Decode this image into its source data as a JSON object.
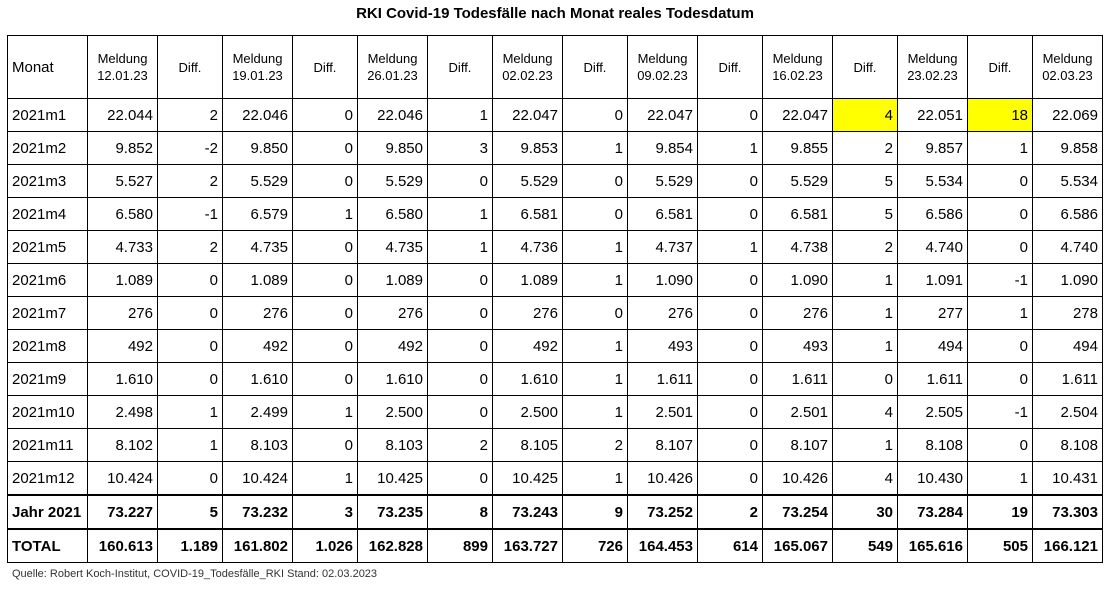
{
  "title": "RKI Covid-19 Todesfälle nach Monat reales Todesdatum",
  "header": {
    "first": "Monat",
    "columns": [
      {
        "line1": "Meldung",
        "line2": "12.01.23"
      },
      {
        "line1": "Diff.",
        "line2": ""
      },
      {
        "line1": "Meldung",
        "line2": "19.01.23"
      },
      {
        "line1": "Diff.",
        "line2": ""
      },
      {
        "line1": "Meldung",
        "line2": "26.01.23"
      },
      {
        "line1": "Diff.",
        "line2": ""
      },
      {
        "line1": "Meldung",
        "line2": "02.02.23"
      },
      {
        "line1": "Diff.",
        "line2": ""
      },
      {
        "line1": "Meldung",
        "line2": "09.02.23"
      },
      {
        "line1": "Diff.",
        "line2": ""
      },
      {
        "line1": "Meldung",
        "line2": "16.02.23"
      },
      {
        "line1": "Diff.",
        "line2": ""
      },
      {
        "line1": "Meldung",
        "line2": "23.02.23"
      },
      {
        "line1": "Diff.",
        "line2": ""
      },
      {
        "line1": "Meldung",
        "line2": "02.03.23"
      }
    ]
  },
  "highlight_color": "#ffff00",
  "rows": [
    {
      "label": "2021m1",
      "cells": [
        "22.044",
        "2",
        "22.046",
        "0",
        "22.046",
        "1",
        "22.047",
        "0",
        "22.047",
        "0",
        "22.047",
        "4",
        "22.051",
        "18",
        "22.069"
      ],
      "highlight": [
        11,
        13
      ]
    },
    {
      "label": "2021m2",
      "cells": [
        "9.852",
        "-2",
        "9.850",
        "0",
        "9.850",
        "3",
        "9.853",
        "1",
        "9.854",
        "1",
        "9.855",
        "2",
        "9.857",
        "1",
        "9.858"
      ],
      "highlight": []
    },
    {
      "label": "2021m3",
      "cells": [
        "5.527",
        "2",
        "5.529",
        "0",
        "5.529",
        "0",
        "5.529",
        "0",
        "5.529",
        "0",
        "5.529",
        "5",
        "5.534",
        "0",
        "5.534"
      ],
      "highlight": []
    },
    {
      "label": "2021m4",
      "cells": [
        "6.580",
        "-1",
        "6.579",
        "1",
        "6.580",
        "1",
        "6.581",
        "0",
        "6.581",
        "0",
        "6.581",
        "5",
        "6.586",
        "0",
        "6.586"
      ],
      "highlight": []
    },
    {
      "label": "2021m5",
      "cells": [
        "4.733",
        "2",
        "4.735",
        "0",
        "4.735",
        "1",
        "4.736",
        "1",
        "4.737",
        "1",
        "4.738",
        "2",
        "4.740",
        "0",
        "4.740"
      ],
      "highlight": []
    },
    {
      "label": "2021m6",
      "cells": [
        "1.089",
        "0",
        "1.089",
        "0",
        "1.089",
        "0",
        "1.089",
        "1",
        "1.090",
        "0",
        "1.090",
        "1",
        "1.091",
        "-1",
        "1.090"
      ],
      "highlight": []
    },
    {
      "label": "2021m7",
      "cells": [
        "276",
        "0",
        "276",
        "0",
        "276",
        "0",
        "276",
        "0",
        "276",
        "0",
        "276",
        "1",
        "277",
        "1",
        "278"
      ],
      "highlight": []
    },
    {
      "label": "2021m8",
      "cells": [
        "492",
        "0",
        "492",
        "0",
        "492",
        "0",
        "492",
        "1",
        "493",
        "0",
        "493",
        "1",
        "494",
        "0",
        "494"
      ],
      "highlight": []
    },
    {
      "label": "2021m9",
      "cells": [
        "1.610",
        "0",
        "1.610",
        "0",
        "1.610",
        "0",
        "1.610",
        "1",
        "1.611",
        "0",
        "1.611",
        "0",
        "1.611",
        "0",
        "1.611"
      ],
      "highlight": []
    },
    {
      "label": "2021m10",
      "cells": [
        "2.498",
        "1",
        "2.499",
        "1",
        "2.500",
        "0",
        "2.500",
        "1",
        "2.501",
        "0",
        "2.501",
        "4",
        "2.505",
        "-1",
        "2.504"
      ],
      "highlight": []
    },
    {
      "label": "2021m11",
      "cells": [
        "8.102",
        "1",
        "8.103",
        "0",
        "8.103",
        "2",
        "8.105",
        "2",
        "8.107",
        "0",
        "8.107",
        "1",
        "8.108",
        "0",
        "8.108"
      ],
      "highlight": []
    },
    {
      "label": "2021m12",
      "cells": [
        "10.424",
        "0",
        "10.424",
        "1",
        "10.425",
        "0",
        "10.425",
        "1",
        "10.426",
        "0",
        "10.426",
        "4",
        "10.430",
        "1",
        "10.431"
      ],
      "highlight": []
    }
  ],
  "year_row": {
    "label": "Jahr 2021",
    "cells": [
      "73.227",
      "5",
      "73.232",
      "3",
      "73.235",
      "8",
      "73.243",
      "9",
      "73.252",
      "2",
      "73.254",
      "30",
      "73.284",
      "19",
      "73.303"
    ]
  },
  "total_row": {
    "label": "TOTAL",
    "cells": [
      "160.613",
      "1.189",
      "161.802",
      "1.026",
      "162.828",
      "899",
      "163.727",
      "726",
      "164.453",
      "614",
      "165.067",
      "549",
      "165.616",
      "505",
      "166.121"
    ]
  },
  "source": "Quelle: Robert Koch-Institut, COVID-19_Todesfälle_RKI Stand: 02.03.2023"
}
